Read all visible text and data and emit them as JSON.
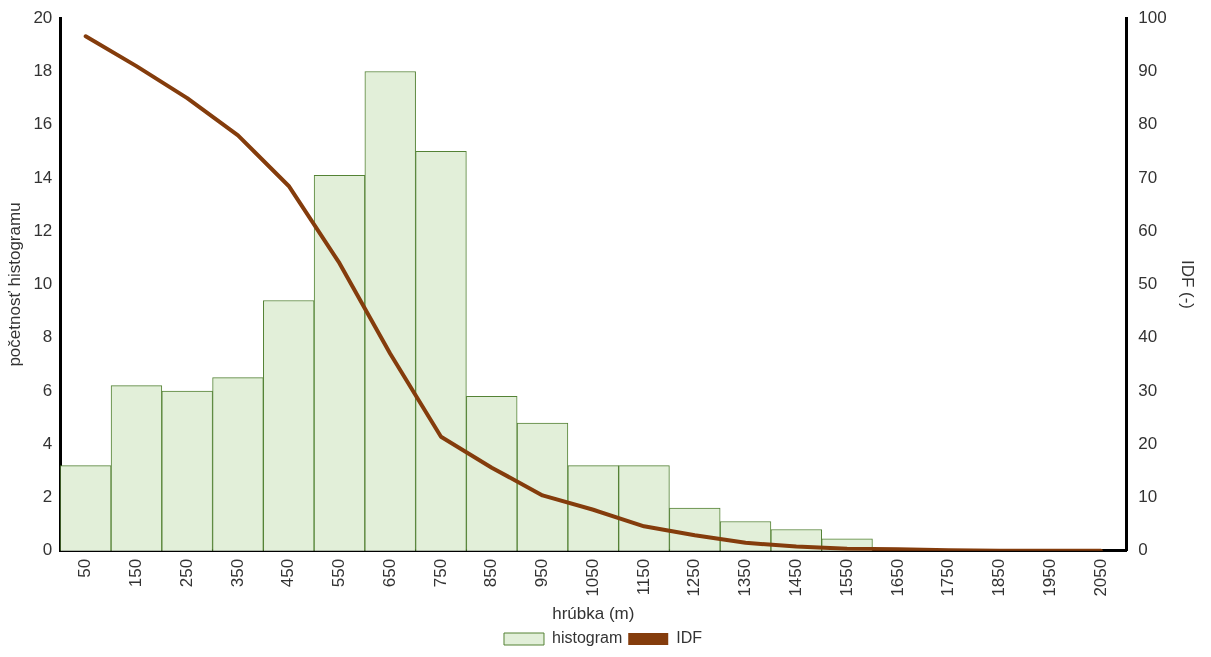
{
  "chart_data": {
    "type": "bar",
    "xlabel": "hrúbka (m)",
    "ylabel": "početnosť histogramu",
    "y2label": "IDF (-)",
    "categories": [
      "50",
      "150",
      "250",
      "350",
      "450",
      "550",
      "650",
      "750",
      "850",
      "950",
      "1050",
      "1150",
      "1250",
      "1350",
      "1450",
      "1550",
      "1650",
      "1750",
      "1850",
      "1950",
      "2050"
    ],
    "series": [
      {
        "name": "histogram",
        "color": "#e2efd9",
        "values": [
          3.2,
          6.2,
          6.0,
          6.5,
          9.4,
          14.1,
          18,
          15.0,
          5.8,
          4.8,
          3.2,
          3.2,
          1.6,
          1.1,
          0.8,
          0.45,
          0,
          0,
          0,
          0,
          0
        ]
      },
      {
        "name": "IDF",
        "type": "line",
        "axis": "y2",
        "color": "#843c0c",
        "values": [
          96.6,
          91,
          85,
          78,
          68.5,
          54,
          37,
          21.4,
          15.6,
          10.4,
          7.7,
          4.6,
          2.9,
          1.5,
          0.8,
          0.4,
          0.3,
          0.1,
          0,
          0,
          0
        ]
      }
    ],
    "ylim": [
      0,
      20
    ],
    "yticks": [
      0,
      2,
      4,
      6,
      8,
      10,
      12,
      14,
      16,
      18,
      20
    ],
    "y2lim": [
      0,
      100
    ],
    "y2ticks": [
      0,
      10,
      20,
      30,
      40,
      50,
      60,
      70,
      80,
      90,
      100
    ],
    "grid": false,
    "legend": "bottom",
    "marker": "none"
  }
}
